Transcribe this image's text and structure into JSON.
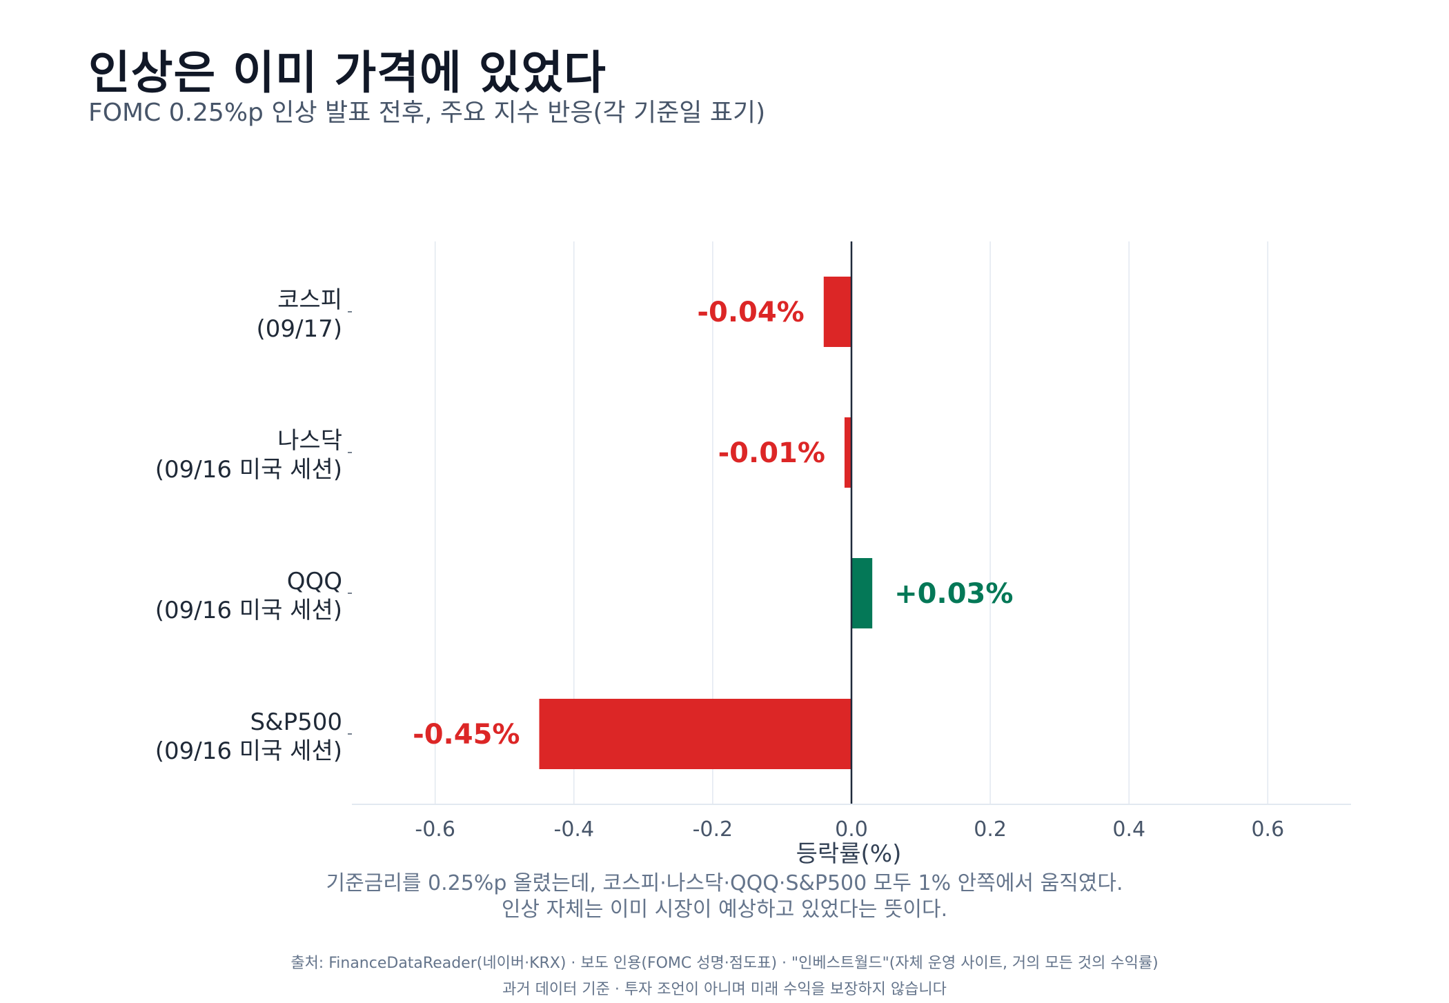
{
  "title": "인상은 이미 가격에 있었다",
  "subtitle": "FOMC 0.25%p 인상 발표 전후, 주요 지수 반응(각 기준일 표기)",
  "caption_lines": [
    "기준금리를 0.25%p 올렸는데, 코스피·나스닥·QQQ·S&P500 모두 1% 안쪽에서 움직였다.",
    "인상 자체는 이미 시장이 예상하고 있었다는 뜻이다."
  ],
  "source_lines": [
    "출처: FinanceDataReader(네이버·KRX) · 보도 인용(FOMC 성명·점도표) · \"인베스트월드\"(자체 운영 사이트, 거의 모든 것의 수익률)",
    "과거 데이터 기준 · 투자 조언이 아니며 미래 수익을 보장하지 않습니다"
  ],
  "chart_data": {
    "type": "bar",
    "orientation": "horizontal",
    "xlabel": "등락률(%)",
    "xlim": [
      -0.72,
      0.72
    ],
    "xticks": [
      -0.6,
      -0.4,
      -0.2,
      0.0,
      0.2,
      0.4,
      0.6
    ],
    "xtick_labels": [
      "-0.6",
      "-0.4",
      "-0.2",
      "0.0",
      "0.2",
      "0.4",
      "0.6"
    ],
    "grid": "vertical",
    "categories": [
      {
        "name": "코스피",
        "date": "(09/17)"
      },
      {
        "name": "나스닥",
        "date": "(09/16 미국 세션)"
      },
      {
        "name": "QQQ",
        "date": "(09/16 미국 세션)"
      },
      {
        "name": "S&P500",
        "date": "(09/16 미국 세션)"
      }
    ],
    "values": [
      -0.04,
      -0.01,
      0.03,
      -0.45
    ],
    "value_labels": [
      "-0.04%",
      "-0.01%",
      "+0.03%",
      "-0.45%"
    ],
    "colors": {
      "negative": "#dc2626",
      "positive": "#047857",
      "grid": "#e2e8f0",
      "zero_line": "#1e293b"
    }
  }
}
